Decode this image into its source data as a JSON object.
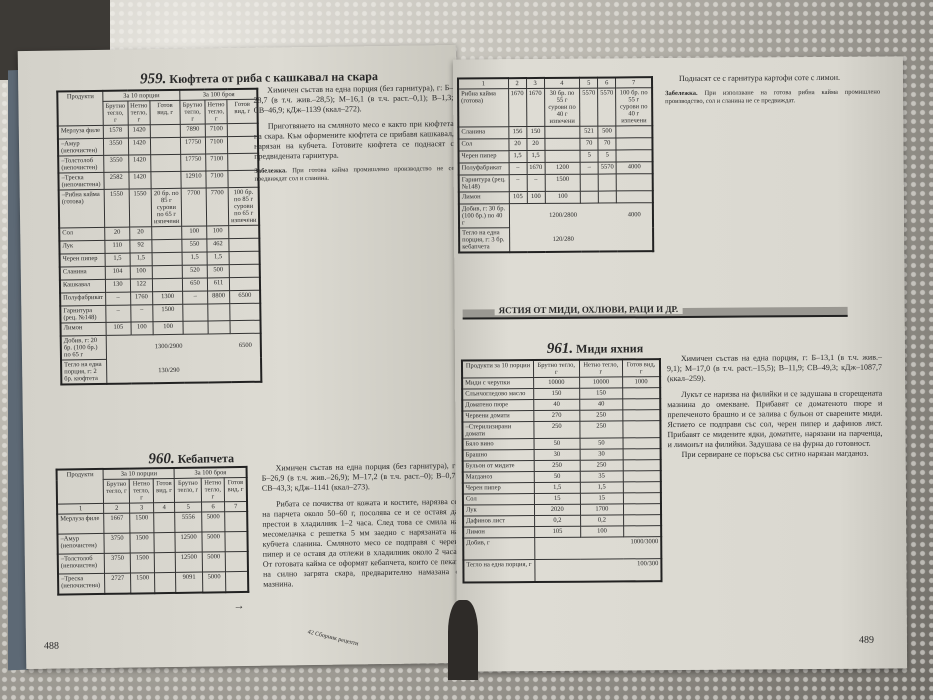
{
  "left_page": {
    "recipe_959": {
      "number": "959.",
      "name": "Кюфтета от риба с кашкавал на скара",
      "table": {
        "product_header": "Продукти",
        "groups": [
          "За 10 порции",
          "За 100 броя"
        ],
        "columns": [
          "Брутно тегло, г",
          "Нетно тегло, г",
          "Готов вид, г",
          "Брутно тегло, г",
          "Нетно тегло, г",
          "Готов вид, г"
        ],
        "rows": [
          [
            "Мерлуза филе",
            "1578",
            "1420",
            "",
            "7890",
            "7100",
            ""
          ],
          [
            "–Амур (непочистен)",
            "3550",
            "1420",
            "",
            "17750",
            "7100",
            ""
          ],
          [
            "–Толстолоб (непочистен)",
            "3550",
            "1420",
            "",
            "17750",
            "7100",
            ""
          ],
          [
            "–Треска (непочистена)",
            "2582",
            "1420",
            "",
            "12910",
            "7100",
            ""
          ],
          [
            "–Рибна кайма (готова)",
            "1550",
            "1550",
            "20 бр. по 85 г сурови по 65 г изпечени",
            "7700",
            "7700",
            "100 бр. по 85 г сурови по 65 г изпечени"
          ],
          [
            "Сол",
            "20",
            "20",
            "",
            "100",
            "100",
            ""
          ],
          [
            "Лук",
            "110",
            "92",
            "",
            "550",
            "462",
            ""
          ],
          [
            "Черен пипер",
            "1,5",
            "1,5",
            "",
            "1,5",
            "1,5",
            ""
          ],
          [
            "Сланина",
            "104",
            "100",
            "",
            "520",
            "500",
            ""
          ],
          [
            "Кашкавал",
            "130",
            "122",
            "",
            "650",
            "611",
            ""
          ],
          [
            "Полуфабрикат",
            "–",
            "1760",
            "1300",
            "–",
            "8800",
            "6500"
          ],
          [
            "Гарнитура (рец. №148)",
            "–",
            "–",
            "1500",
            "",
            "",
            ""
          ],
          [
            "Лимон",
            "105",
            "100",
            "100",
            "",
            "",
            ""
          ]
        ],
        "totals": [
          {
            "label": "Добив, г: 20 бр. (100 бр.) по 65 г",
            "left": "1300/2900",
            "right": "6500"
          },
          {
            "label": "Тегло на една порция, г: 2 бр. кюфтета",
            "left": "130/290",
            "right": ""
          }
        ]
      },
      "chemistry": "Химичен състав на една порция (без гарнитура), г: Б–28,7 (в т.ч. жив.–28,5); М–16,1 (в т.ч. раст.–0,1); В–1,3; СВ–46,9; кДж–1139 (ккал–272).",
      "preparation": "Приготвянето на смляното месо е както при кюфтета на скара. Към оформените кюфтета се прибавя кашкавал, нарязан на кубчета. Готовите кюфтета се поднасят с предвидената гарнитура.",
      "note_label": "Забележка.",
      "note_text": "При готова кайма промишлено производство не се предвиждат сол и сланина."
    },
    "recipe_960": {
      "number": "960.",
      "name": "Кебапчета",
      "table": {
        "product_header": "Продукти",
        "groups": [
          "За 10 порции",
          "За 100 броя"
        ],
        "columns": [
          "Брутно тегло, г",
          "Нетно тегло, г",
          "Готов вид, г",
          "Брутно тегло, г",
          "Нетно тегло, г",
          "Готов вид, г"
        ],
        "col_numbers": [
          "1",
          "2",
          "3",
          "4",
          "5",
          "6",
          "7"
        ],
        "rows": [
          [
            "Мерлуза филе",
            "1667",
            "1500",
            "",
            "5556",
            "5000",
            ""
          ],
          [
            "–Амур (непочистен)",
            "3750",
            "1500",
            "",
            "12500",
            "5000",
            ""
          ],
          [
            "–Толстолоб (непочистен)",
            "3750",
            "1500",
            "",
            "12500",
            "5000",
            ""
          ],
          [
            "–Треска (непочистена)",
            "2727",
            "1500",
            "",
            "9091",
            "5000",
            ""
          ]
        ]
      },
      "continue_arrow": "→",
      "chemistry": "Химичен състав на една порция (без гарнитура), г: Б–26,9 (в т.ч. жив.–26,9); М–17,2 (в т.ч. раст.–0); В–0,7; СВ–43,3; кДж–1141 (ккал–273).",
      "preparation": "Рибата се почиства от кожата и костите, нарязва се на парчета около 50–60 г, посолява се и се оставя да престои в хладилник 1–2 часа. След това се смила на месомелачка с решетка 5 мм заедно с нарязаната на кубчета сланина. Смляното месо се подправя с черен пипер и се оставя да отлежи в хладилник около 2 часа. От готовата кайма се оформят кебапчета, които се пекат на силно загрята скара, предварително намазана с мазнина."
    },
    "page_number": "488"
  },
  "right_page": {
    "continued_table": {
      "col_numbers": [
        "1",
        "2",
        "3",
        "4",
        "5",
        "6",
        "7"
      ],
      "rows": [
        [
          "Рибна кайма (готова)",
          "1670",
          "1670",
          "30 бр. по 55 г сурови по 40 г изпечени",
          "5570",
          "5570",
          "100 бр. по 55 г сурови по 40 г изпечени"
        ],
        [
          "Сланина",
          "156",
          "150",
          "",
          "521",
          "500",
          ""
        ],
        [
          "Сол",
          "20",
          "20",
          "",
          "70",
          "70",
          ""
        ],
        [
          "Черен пипер",
          "1,5",
          "1,5",
          "",
          "5",
          "5",
          ""
        ],
        [
          "Полуфабрикат",
          "–",
          "1670",
          "1200",
          "–",
          "5570",
          "4000"
        ],
        [
          "Гарнитура (рец. №148)",
          "–",
          "–",
          "1500",
          "",
          "",
          ""
        ],
        [
          "Лимон",
          "105",
          "100",
          "100",
          "",
          "",
          ""
        ]
      ],
      "totals": [
        {
          "label": "Добив, г: 30 бр. (100 бр.) по 40 г",
          "left": "1200/2800",
          "right": "4000"
        },
        {
          "label": "Тегло на една порция, г: 3 бр. кебапчета",
          "left": "120/280",
          "right": ""
        }
      ]
    },
    "serving": "Поднасят се с гарнитура картофи соте с лимон.",
    "note_label": "Забележка.",
    "note_text": "При използване на готова рибна кайма промишлено производство, сол и сланина не се предвиждат.",
    "section_title": "ЯСТИЯ ОТ МИДИ, ОХЛЮВИ, РАЦИ И ДР.",
    "recipe_961": {
      "number": "961.",
      "name": "Миди яхния",
      "table": {
        "columns": [
          "Продукти за 10 порции",
          "Брутно тегло, г",
          "Нетно тегло, г",
          "Готов вид, г"
        ],
        "rows": [
          [
            "Миди с черупки",
            "10000",
            "10000",
            "1000"
          ],
          [
            "Слънчогледово масло",
            "150",
            "150",
            ""
          ],
          [
            "Доматено пюре",
            "40",
            "40",
            ""
          ],
          [
            "Червени домати",
            "270",
            "250",
            ""
          ],
          [
            "–Стерилизирани домати",
            "250",
            "250",
            ""
          ],
          [
            "Бяло вино",
            "50",
            "50",
            ""
          ],
          [
            "Брашно",
            "30",
            "30",
            ""
          ],
          [
            "Бульон от мидите",
            "250",
            "250",
            ""
          ],
          [
            "Магданоз",
            "50",
            "35",
            ""
          ],
          [
            "Черен пипер",
            "1,5",
            "1,5",
            ""
          ],
          [
            "Сол",
            "15",
            "15",
            ""
          ],
          [
            "Лук",
            "2020",
            "1700",
            ""
          ],
          [
            "Дафинов лист",
            "0,2",
            "0,2",
            ""
          ],
          [
            "Лимон",
            "105",
            "100",
            ""
          ]
        ],
        "totals": [
          {
            "label": "Добив, г",
            "value": "1000/3000"
          },
          {
            "label": "Тегло на една порция, г",
            "value": "100/300"
          }
        ]
      },
      "chemistry": "Химичен състав на една порция, г: Б–13,1 (в т.ч. жив.–9,1); М–17,0 (в т.ч. раст.–15,5); В–11,9; СВ–49,3; кДж–1087,7 (ккал–259).",
      "preparation": "Лукът се нарязва на филийки и се задушава в сгорещената мазнина до омекване. Прибавят се доматеното пюре и препеченото брашно и се залива с бульон от сварените миди. Ястието се подправя със сол, черен пипер и дафинов лист. Прибавят се мидените ядки, доматите, нарязани на парченца, и лимонът на филийки. Задушава се на фурна до готовност.",
      "serving": "При сервиране се поръсва със ситно нарязан магданоз."
    },
    "footer_signature": "42 Сборник рецепти",
    "page_number": "489"
  }
}
